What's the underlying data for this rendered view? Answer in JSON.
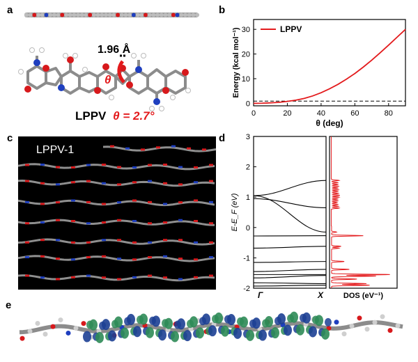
{
  "panels": {
    "a": {
      "letter": "a",
      "bond_label": "1.96 Å",
      "theta_symbol": "θ",
      "caption_name": "LPPV",
      "caption_theta": "θ = 2.7°"
    },
    "b": {
      "letter": "b"
    },
    "c": {
      "letter": "c",
      "label": "LPPV-1"
    },
    "d": {
      "letter": "d"
    },
    "e": {
      "letter": "e"
    }
  },
  "colors": {
    "curve_red": "#e31a1c",
    "oxygen_red": "#d7191c",
    "nitrogen_blue": "#1f3fbf",
    "carbon_gray": "#8c8c8c",
    "orbital_blue": "#1c3f94",
    "orbital_green": "#2e8b57"
  },
  "chart_data": [
    {
      "type": "line",
      "panel": "b",
      "xlabel": "θ (deg)",
      "ylabel": "Energy (kcal mol⁻¹)",
      "xlim": [
        0,
        90
      ],
      "ylim": [
        -1,
        34
      ],
      "xticks": [
        0,
        20,
        40,
        60,
        80
      ],
      "yticks": [
        0,
        10,
        20,
        30
      ],
      "legend": "top-left",
      "series": [
        {
          "name": "LPPV",
          "x": [
            0,
            5,
            10,
            15,
            20,
            25,
            30,
            35,
            40,
            45,
            50,
            55,
            60,
            65,
            70,
            75,
            80,
            85,
            90
          ],
          "y": [
            0,
            0.05,
            0.2,
            0.4,
            0.8,
            1.3,
            2.0,
            3.0,
            4.3,
            5.9,
            7.7,
            9.8,
            12.1,
            14.7,
            17.5,
            20.5,
            23.6,
            26.8,
            30.0
          ]
        }
      ],
      "reference_line": {
        "y": 0.9,
        "style": "dashed"
      }
    },
    {
      "type": "line",
      "panel": "d-bands",
      "ylabel": "E-E_F (eV)",
      "ylim": [
        -2,
        3
      ],
      "yticks": [
        -2,
        -1,
        0,
        1,
        2,
        3
      ],
      "xtick_labels": [
        "Γ",
        "X"
      ],
      "bands": [
        {
          "y_gamma": 1.05,
          "y_x": 1.55
        },
        {
          "y_gamma": 1.05,
          "y_x": -0.15
        },
        {
          "y_gamma": 0.95,
          "y_x": 0.65
        },
        {
          "y_gamma": -0.28,
          "y_x": -0.27
        },
        {
          "y_gamma": -0.68,
          "y_x": -0.62
        },
        {
          "y_gamma": -1.15,
          "y_x": -1.12
        },
        {
          "y_gamma": -1.45,
          "y_x": -1.38
        },
        {
          "y_gamma": -1.55,
          "y_x": -1.55
        },
        {
          "y_gamma": -1.66,
          "y_x": -1.58
        },
        {
          "y_gamma": -1.82,
          "y_x": -1.85
        },
        {
          "y_gamma": -1.93,
          "y_x": -1.9
        }
      ]
    },
    {
      "type": "line",
      "panel": "d-dos",
      "xlabel": "DOS (eV⁻¹)",
      "ylim": [
        -2,
        3
      ],
      "dos_peaks": [
        {
          "e": 1.55,
          "h": 0.12
        },
        {
          "e": 1.48,
          "h": 0.1
        },
        {
          "e": 1.42,
          "h": 0.1
        },
        {
          "e": 1.36,
          "h": 0.11
        },
        {
          "e": 1.3,
          "h": 0.1
        },
        {
          "e": 1.24,
          "h": 0.11
        },
        {
          "e": 1.18,
          "h": 0.1
        },
        {
          "e": 1.12,
          "h": 0.11
        },
        {
          "e": 1.06,
          "h": 0.13
        },
        {
          "e": 1.0,
          "h": 0.12
        },
        {
          "e": 0.94,
          "h": 0.1
        },
        {
          "e": 0.88,
          "h": 0.1
        },
        {
          "e": 0.82,
          "h": 0.09
        },
        {
          "e": 0.76,
          "h": 0.1
        },
        {
          "e": 0.7,
          "h": 0.11
        },
        {
          "e": 0.64,
          "h": 0.12
        },
        {
          "e": 0.4,
          "h": 0.05
        },
        {
          "e": 0.2,
          "h": 0.04
        },
        {
          "e": -0.15,
          "h": 0.08
        },
        {
          "e": -0.27,
          "h": 0.5
        },
        {
          "e": -0.62,
          "h": 0.15
        },
        {
          "e": -0.68,
          "h": 0.12
        },
        {
          "e": -1.12,
          "h": 0.2
        },
        {
          "e": -1.38,
          "h": 0.28
        },
        {
          "e": -1.55,
          "h": 0.92
        },
        {
          "e": -1.6,
          "h": 0.7
        },
        {
          "e": -1.7,
          "h": 0.4
        },
        {
          "e": -1.85,
          "h": 0.55
        },
        {
          "e": -1.9,
          "h": 0.6
        }
      ]
    }
  ]
}
